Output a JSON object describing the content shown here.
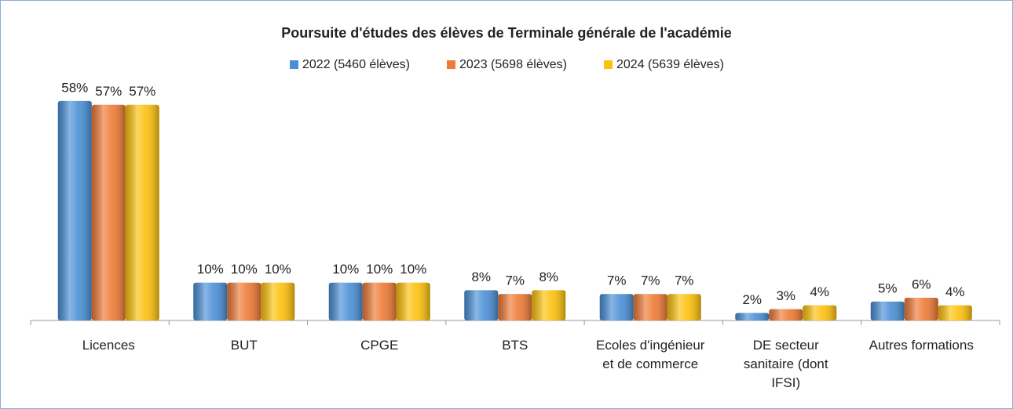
{
  "chart_data": {
    "type": "bar",
    "title": "Poursuite d'études des élèves de Terminale générale de l'académie",
    "categories": [
      "Licences",
      "BUT",
      "CPGE",
      "BTS",
      "Ecoles d'ingénieur et de commerce",
      "DE secteur sanitaire (dont IFSI)",
      "Autres formations"
    ],
    "series": [
      {
        "name": "2022 (5460 élèves)",
        "color": "#4a8fd6",
        "values": [
          58,
          10,
          10,
          8,
          7,
          2,
          5
        ],
        "value_labels": [
          "58%",
          "10%",
          "10%",
          "8%",
          "7%",
          "2%",
          "5%"
        ]
      },
      {
        "name": "2023 (5698 élèves)",
        "color": "#ee7a35",
        "values": [
          57,
          10,
          10,
          7,
          7,
          3,
          6
        ],
        "value_labels": [
          "57%",
          "10%",
          "10%",
          "7%",
          "7%",
          "3%",
          "6%"
        ]
      },
      {
        "name": "2024 (5639 élèves)",
        "color": "#fcc10c",
        "values": [
          57,
          10,
          10,
          8,
          7,
          4,
          4
        ],
        "value_labels": [
          "57%",
          "10%",
          "10%",
          "8%",
          "7%",
          "4%",
          "4%"
        ]
      }
    ]
  }
}
